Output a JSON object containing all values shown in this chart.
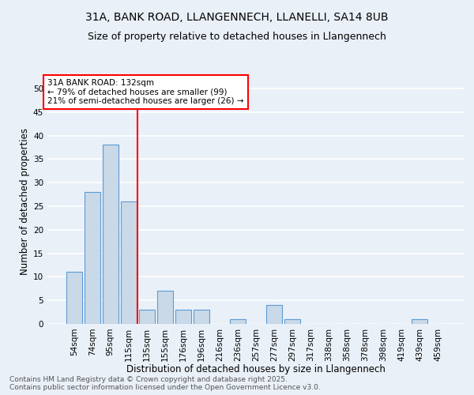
{
  "title": "31A, BANK ROAD, LLANGENNECH, LLANELLI, SA14 8UB",
  "subtitle": "Size of property relative to detached houses in Llangennech",
  "xlabel": "Distribution of detached houses by size in Llangennech",
  "ylabel": "Number of detached properties",
  "categories": [
    "54sqm",
    "74sqm",
    "95sqm",
    "115sqm",
    "135sqm",
    "155sqm",
    "176sqm",
    "196sqm",
    "216sqm",
    "236sqm",
    "257sqm",
    "277sqm",
    "297sqm",
    "317sqm",
    "338sqm",
    "358sqm",
    "378sqm",
    "398sqm",
    "419sqm",
    "439sqm",
    "459sqm"
  ],
  "values": [
    11,
    28,
    38,
    26,
    3,
    7,
    3,
    3,
    0,
    1,
    0,
    4,
    1,
    0,
    0,
    0,
    0,
    0,
    0,
    1,
    0
  ],
  "bar_color": "#c9d9e8",
  "bar_edge_color": "#5b9bd5",
  "vline_x": 3.5,
  "vline_label": "31A BANK ROAD: 132sqm",
  "annotation_line1": "← 79% of detached houses are smaller (99)",
  "annotation_line2": "21% of semi-detached houses are larger (26) →",
  "ylim": [
    0,
    52
  ],
  "yticks": [
    0,
    5,
    10,
    15,
    20,
    25,
    30,
    35,
    40,
    45,
    50
  ],
  "background_color": "#eaf0f8",
  "grid_color": "#ffffff",
  "footer": "Contains HM Land Registry data © Crown copyright and database right 2025.\nContains public sector information licensed under the Open Government Licence v3.0.",
  "title_fontsize": 10,
  "subtitle_fontsize": 9,
  "xlabel_fontsize": 8.5,
  "ylabel_fontsize": 8.5,
  "tick_fontsize": 7.5,
  "annotation_fontsize": 7.5,
  "footer_fontsize": 6.5
}
